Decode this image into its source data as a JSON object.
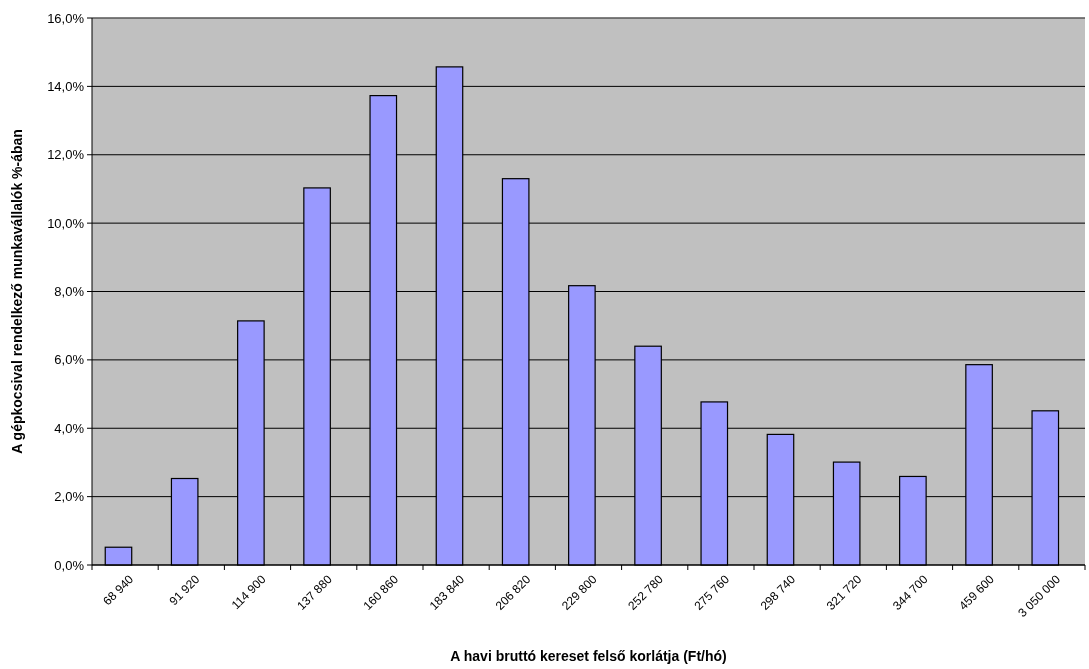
{
  "chart_data": {
    "type": "bar",
    "xlabel": "A havi bruttó kereset felső korlátja (Ft/hó)",
    "ylabel": "A gépkocsival rendelkező munkavállalók %-ában",
    "categories": [
      "68 940",
      "91 920",
      "114 900",
      "137 880",
      "160 860",
      "183 840",
      "206 820",
      "229 800",
      "252 780",
      "275 760",
      "298 740",
      "321 720",
      "344 700",
      "459 600",
      "3 050 000"
    ],
    "values": [
      0.52,
      2.53,
      7.14,
      11.03,
      13.73,
      14.57,
      11.3,
      8.17,
      6.4,
      4.77,
      3.82,
      3.01,
      2.59,
      5.86,
      4.51
    ],
    "color": "#9999ff",
    "ylim": [
      0,
      16
    ],
    "yticks": [
      {
        "value": 0,
        "label": "0,0%"
      },
      {
        "value": 2,
        "label": "2,0%"
      },
      {
        "value": 4,
        "label": "4,0%"
      },
      {
        "value": 6,
        "label": "6,0%"
      },
      {
        "value": 8,
        "label": "8,0%"
      },
      {
        "value": 10,
        "label": "10,0%"
      },
      {
        "value": 12,
        "label": "12,0%"
      },
      {
        "value": 14,
        "label": "14,0%"
      },
      {
        "value": 16,
        "label": "16,0%"
      }
    ],
    "grid": "y"
  }
}
